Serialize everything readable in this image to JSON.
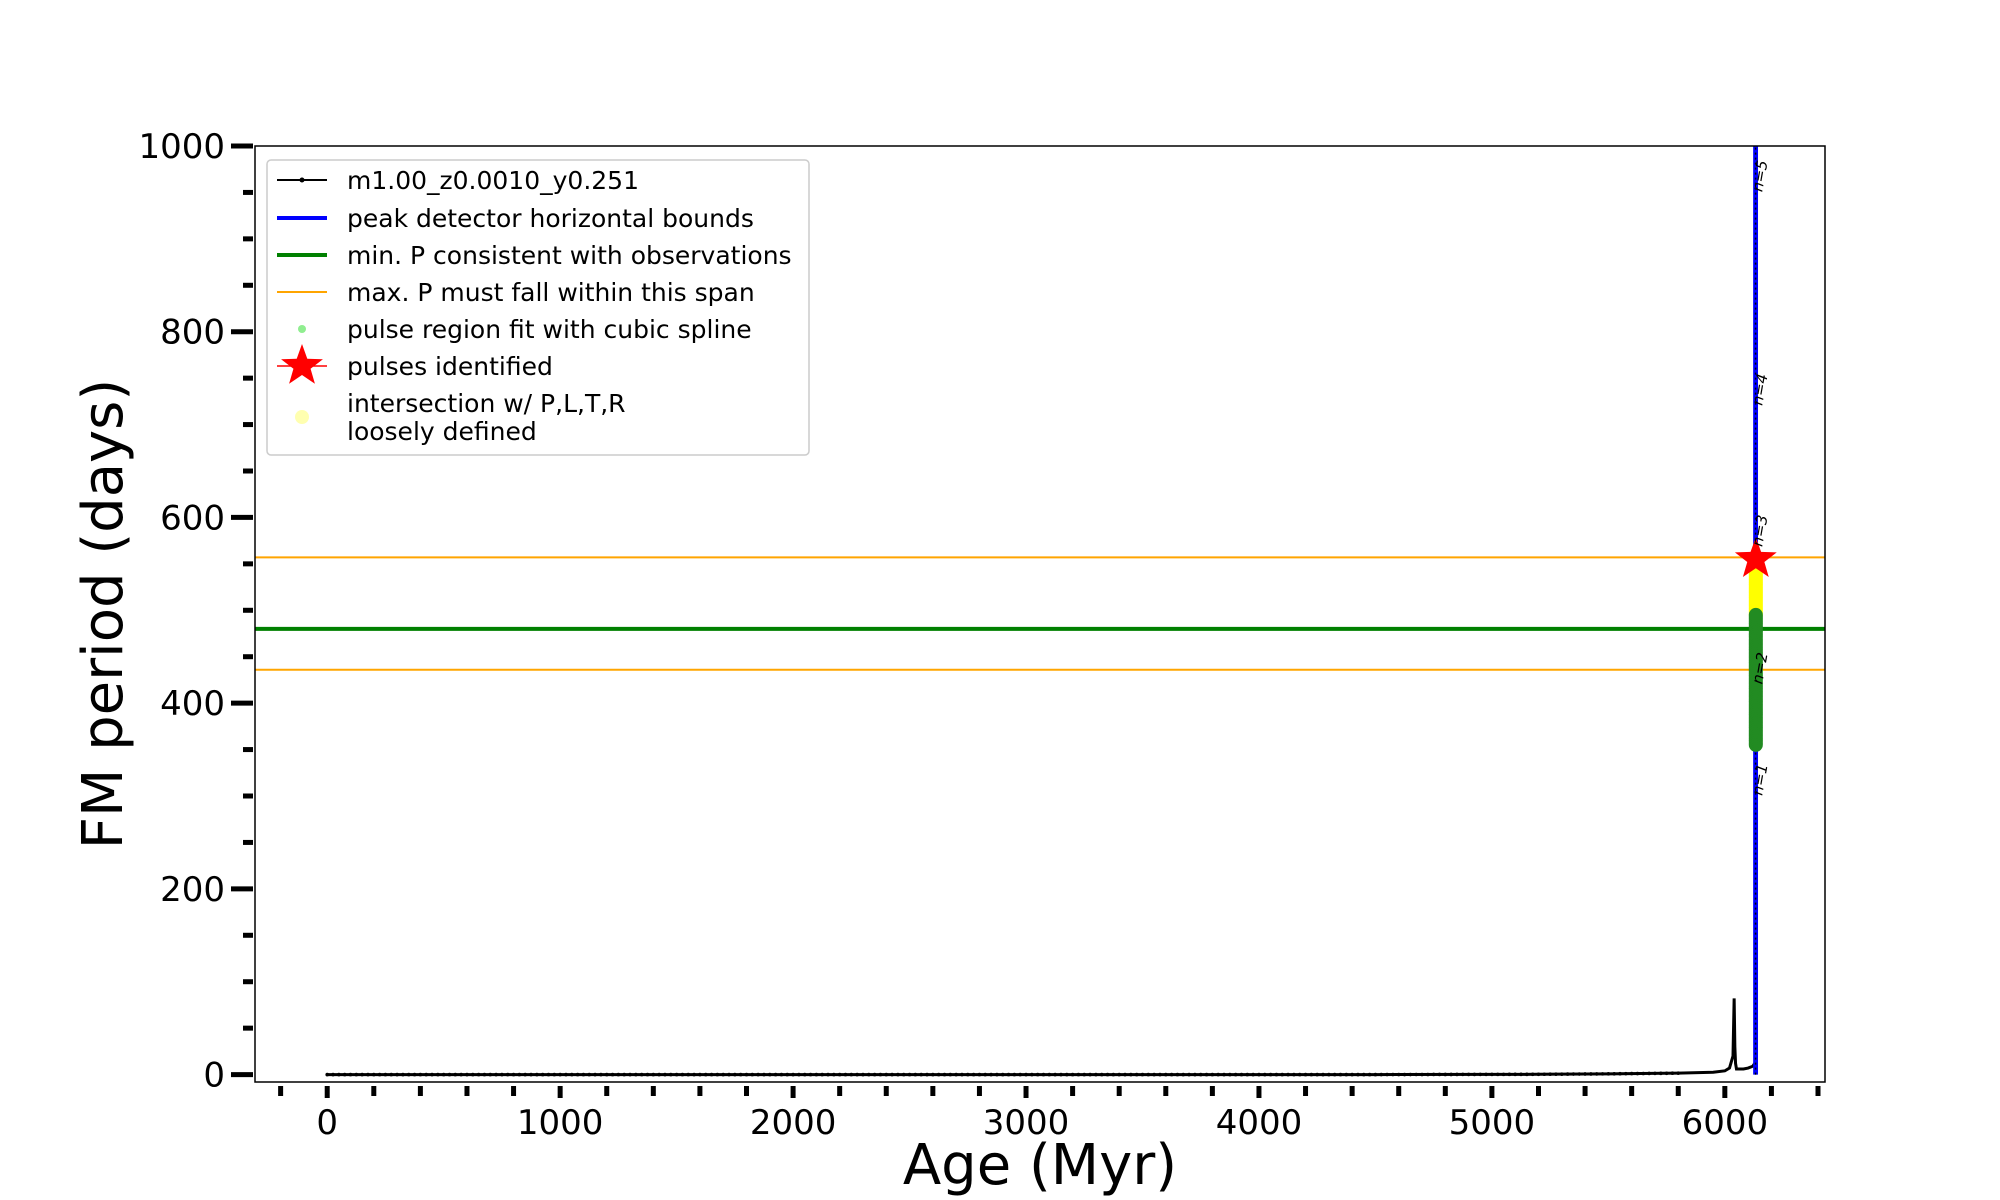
{
  "chart_data": {
    "type": "line",
    "xlabel": "Age (Myr)",
    "ylabel": "FM period (days)",
    "xlim": [
      -310,
      6430
    ],
    "ylim": [
      -8,
      1000
    ],
    "xticks": [
      0,
      1000,
      2000,
      3000,
      4000,
      5000,
      6000
    ],
    "yticks": [
      0,
      200,
      400,
      600,
      800,
      1000
    ],
    "xticks_minor_step": 200,
    "yticks_minor_step": 50,
    "grid": false,
    "legend_position": "top-left",
    "colors": {
      "track": "#000000",
      "peak_bounds": "#0000ff",
      "min_p": "#008000",
      "max_p_span": "#ffa500",
      "spline_points": "#90ee90",
      "spline_points_drawn": "#228b22",
      "pulses": "#ff0000",
      "intersection": "#ffff00",
      "intersection_legend": "#ffffb0"
    },
    "series": [
      {
        "name": "m1.00_z0.0010_y0.251",
        "kind": "track",
        "x": [
          0,
          500,
          1000,
          1500,
          2000,
          2500,
          3000,
          3500,
          4000,
          4500,
          5000,
          5200,
          5500,
          5800,
          5950,
          6000,
          6020,
          6035,
          6040,
          6043,
          6046,
          6050,
          6080,
          6100,
          6120,
          6128
        ],
        "y": [
          0,
          0,
          0,
          0,
          0,
          0,
          0,
          0,
          0,
          0,
          0.2,
          0.3,
          0.8,
          1.5,
          2.5,
          4,
          7,
          20,
          82,
          30,
          12,
          6,
          6,
          7,
          9,
          12
        ]
      },
      {
        "name": "peak detector horizontal bounds",
        "kind": "vline",
        "x": [
          6128,
          6136
        ],
        "y_range": [
          0,
          1000
        ]
      },
      {
        "name": "min. P consistent with observations",
        "kind": "hline",
        "y": 480
      },
      {
        "name": "max. P must fall within this span",
        "kind": "hlines",
        "y": [
          436,
          557
        ]
      },
      {
        "name": "pulse region fit with cubic spline",
        "kind": "points",
        "x": 6133,
        "y_range": [
          355,
          495
        ]
      },
      {
        "name": "pulses identified",
        "kind": "star",
        "x": [
          6133
        ],
        "y": [
          555
        ]
      },
      {
        "name": "intersection w/ P,L,T,R\nloosely defined",
        "kind": "band",
        "x": 6133,
        "y_range": [
          495,
          555
        ]
      }
    ],
    "annotations": [
      {
        "text": "n=1",
        "x": 6160,
        "y": 300
      },
      {
        "text": "n=2",
        "x": 6160,
        "y": 420
      },
      {
        "text": "n=3",
        "x": 6160,
        "y": 568
      },
      {
        "text": "n=4",
        "x": 6160,
        "y": 720
      },
      {
        "text": "n=5",
        "x": 6160,
        "y": 950
      }
    ]
  }
}
